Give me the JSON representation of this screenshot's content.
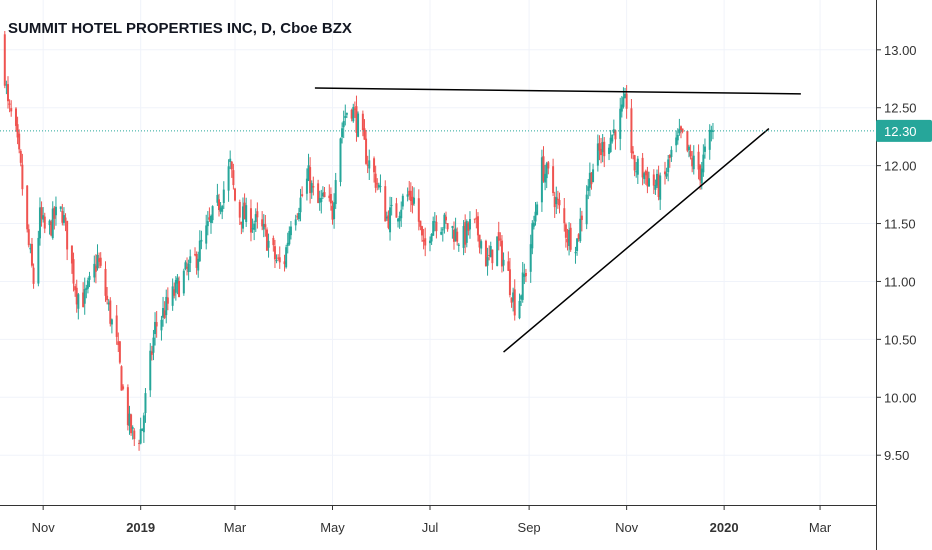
{
  "header": {
    "title": "SUMMIT HOTEL PROPERTIES INC, D, Cboe BZX"
  },
  "colors": {
    "up": "#26a69a",
    "down": "#ef5350",
    "price_line": "#26a69a",
    "trend_line": "#000000",
    "grid": "#f0f3fa",
    "axis": "#333333"
  },
  "chart_data": {
    "type": "candlestick",
    "title": "SUMMIT HOTEL PROPERTIES INC, D, Cboe BZX",
    "ylim": [
      9.07,
      13.43
    ],
    "xlim": [
      "2018-10-05",
      "2020-04-05"
    ],
    "y_ticks": [
      "13.00",
      "12.50",
      "12.00",
      "11.50",
      "11.00",
      "10.50",
      "10.00",
      "9.50"
    ],
    "x_ticks": [
      {
        "label": "Nov",
        "date": "2018-11-01",
        "bold": false
      },
      {
        "label": "2019",
        "date": "2019-01-01",
        "bold": true
      },
      {
        "label": "Mar",
        "date": "2019-03-01",
        "bold": false
      },
      {
        "label": "May",
        "date": "2019-05-01",
        "bold": false
      },
      {
        "label": "Jul",
        "date": "2019-07-01",
        "bold": false
      },
      {
        "label": "Sep",
        "date": "2019-09-01",
        "bold": false
      },
      {
        "label": "Nov",
        "date": "2019-11-01",
        "bold": false
      },
      {
        "label": "2020",
        "date": "2020-01-01",
        "bold": true
      },
      {
        "label": "Mar",
        "date": "2020-03-01",
        "bold": false
      }
    ],
    "last_price": "12.30",
    "last_price_value": 12.3,
    "trendlines": [
      {
        "from": {
          "date": "2019-04-20",
          "value": 12.67
        },
        "to": {
          "date": "2020-02-18",
          "value": 12.62
        }
      },
      {
        "from": {
          "date": "2019-08-16",
          "value": 10.39
        },
        "to": {
          "date": "2020-01-29",
          "value": 12.32
        }
      }
    ],
    "close_path": [
      [
        "2018-10-06",
        13.1
      ],
      [
        "2018-10-10",
        12.5
      ],
      [
        "2018-10-14",
        12.35
      ],
      [
        "2018-10-18",
        11.95
      ],
      [
        "2018-10-22",
        11.4
      ],
      [
        "2018-10-26",
        11.0
      ],
      [
        "2018-10-30",
        11.55
      ],
      [
        "2018-11-03",
        11.4
      ],
      [
        "2018-11-08",
        11.55
      ],
      [
        "2018-11-13",
        11.6
      ],
      [
        "2018-11-18",
        11.2
      ],
      [
        "2018-11-22",
        10.9
      ],
      [
        "2018-11-27",
        10.85
      ],
      [
        "2018-12-01",
        11.0
      ],
      [
        "2018-12-05",
        11.2
      ],
      [
        "2018-12-09",
        10.95
      ],
      [
        "2018-12-13",
        10.7
      ],
      [
        "2018-12-17",
        10.45
      ],
      [
        "2018-12-21",
        10.05
      ],
      [
        "2018-12-25",
        9.75
      ],
      [
        "2018-12-29",
        9.6
      ],
      [
        "2019-01-02",
        9.75
      ],
      [
        "2019-01-06",
        10.2
      ],
      [
        "2019-01-10",
        10.6
      ],
      [
        "2019-01-16",
        10.75
      ],
      [
        "2019-01-22",
        10.9
      ],
      [
        "2019-01-28",
        11.05
      ],
      [
        "2019-02-03",
        11.15
      ],
      [
        "2019-02-09",
        11.35
      ],
      [
        "2019-02-15",
        11.55
      ],
      [
        "2019-02-21",
        11.75
      ],
      [
        "2019-02-26",
        12.0
      ],
      [
        "2019-03-02",
        11.6
      ],
      [
        "2019-03-08",
        11.55
      ],
      [
        "2019-03-14",
        11.5
      ],
      [
        "2019-03-20",
        11.4
      ],
      [
        "2019-03-26",
        11.2
      ],
      [
        "2019-03-31",
        11.1
      ],
      [
        "2019-04-05",
        11.55
      ],
      [
        "2019-04-11",
        11.7
      ],
      [
        "2019-04-16",
        11.9
      ],
      [
        "2019-04-21",
        11.65
      ],
      [
        "2019-04-26",
        11.7
      ],
      [
        "2019-05-01",
        11.6
      ],
      [
        "2019-05-04",
        12.15
      ],
      [
        "2019-05-08",
        12.4
      ],
      [
        "2019-05-12",
        12.55
      ],
      [
        "2019-05-17",
        12.35
      ],
      [
        "2019-05-23",
        12.05
      ],
      [
        "2019-05-29",
        11.85
      ],
      [
        "2019-06-04",
        11.55
      ],
      [
        "2019-06-10",
        11.6
      ],
      [
        "2019-06-16",
        11.75
      ],
      [
        "2019-06-22",
        11.7
      ],
      [
        "2019-06-27",
        11.25
      ],
      [
        "2019-07-03",
        11.55
      ],
      [
        "2019-07-09",
        11.5
      ],
      [
        "2019-07-15",
        11.45
      ],
      [
        "2019-07-21",
        11.35
      ],
      [
        "2019-07-27",
        11.5
      ],
      [
        "2019-08-01",
        11.4
      ],
      [
        "2019-08-06",
        11.15
      ],
      [
        "2019-08-12",
        11.35
      ],
      [
        "2019-08-18",
        11.1
      ],
      [
        "2019-08-24",
        10.75
      ],
      [
        "2019-08-30",
        11.1
      ],
      [
        "2019-09-04",
        11.5
      ],
      [
        "2019-09-08",
        12.0
      ],
      [
        "2019-09-13",
        11.9
      ],
      [
        "2019-09-19",
        11.65
      ],
      [
        "2019-09-25",
        11.4
      ],
      [
        "2019-10-01",
        11.35
      ],
      [
        "2019-10-06",
        11.75
      ],
      [
        "2019-10-12",
        12.05
      ],
      [
        "2019-10-17",
        12.15
      ],
      [
        "2019-10-22",
        12.25
      ],
      [
        "2019-10-26",
        12.35
      ],
      [
        "2019-11-01",
        12.55
      ],
      [
        "2019-11-05",
        12.0
      ],
      [
        "2019-11-11",
        11.95
      ],
      [
        "2019-11-17",
        11.85
      ],
      [
        "2019-11-23",
        11.8
      ],
      [
        "2019-11-29",
        12.1
      ],
      [
        "2019-12-05",
        12.25
      ],
      [
        "2019-12-11",
        12.05
      ],
      [
        "2019-12-17",
        11.95
      ],
      [
        "2019-12-21",
        12.15
      ],
      [
        "2019-12-25",
        12.3
      ]
    ]
  }
}
